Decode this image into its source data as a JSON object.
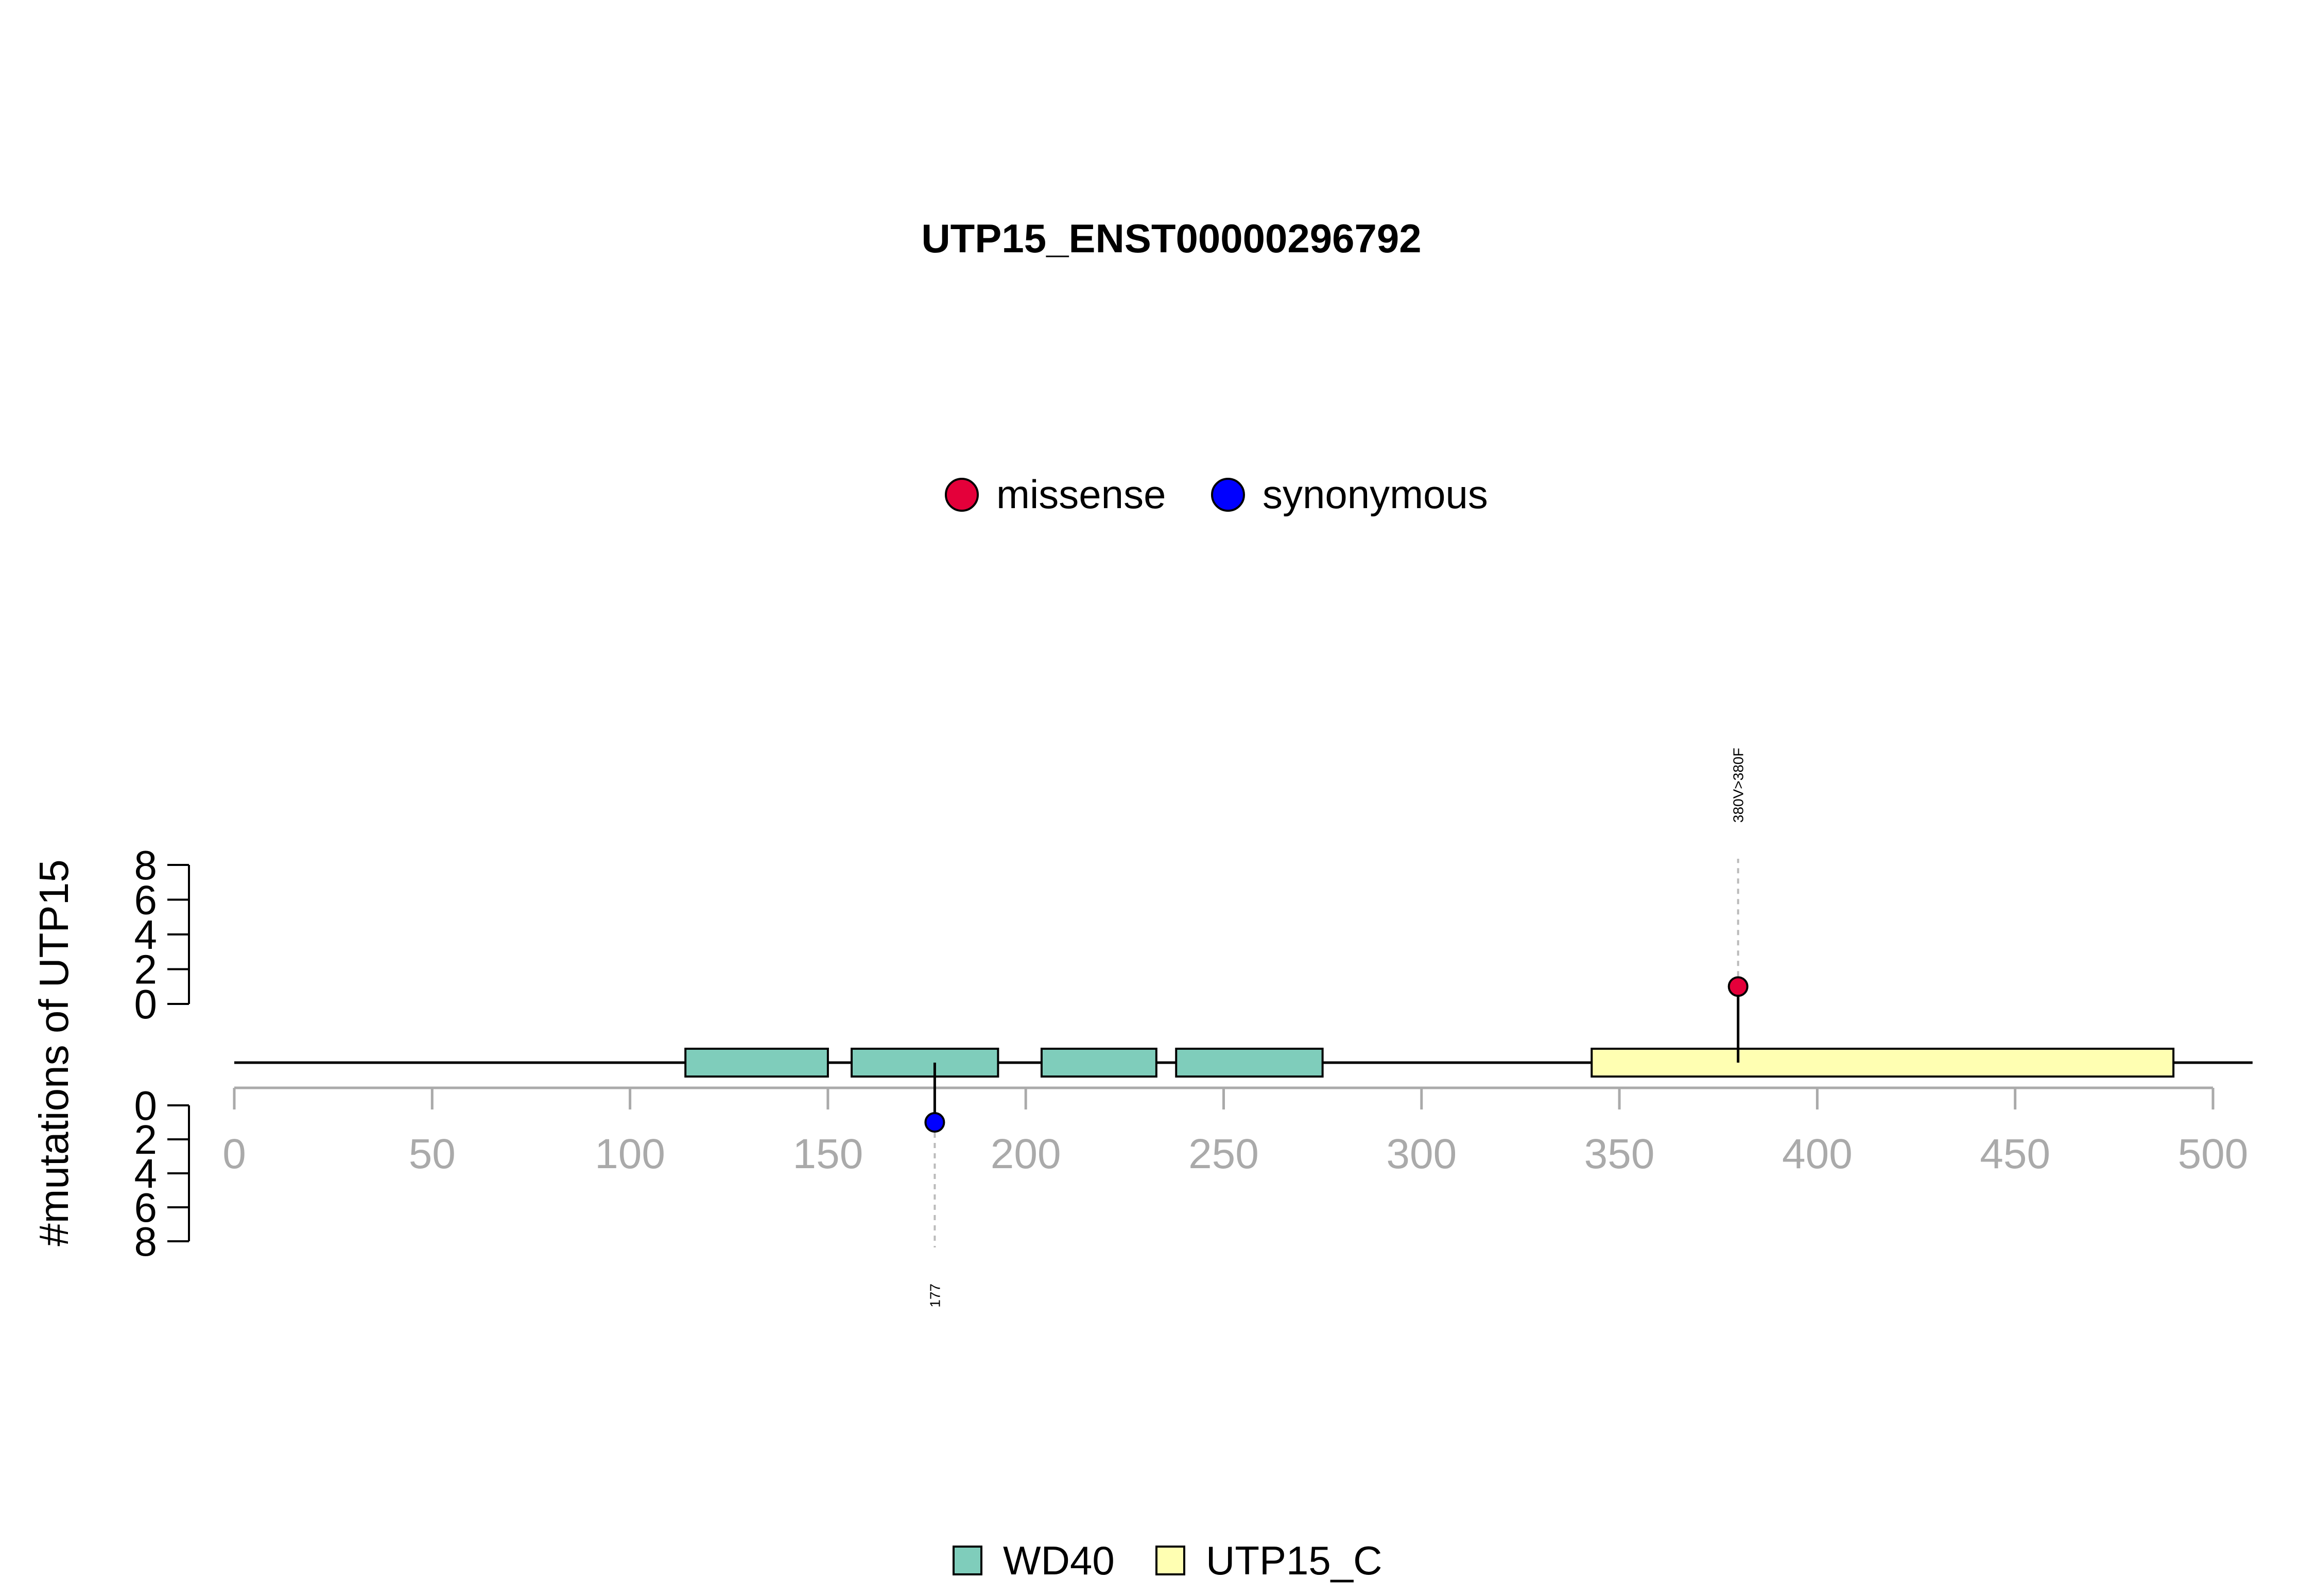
{
  "chart_data": {
    "type": "lollipop",
    "title": "UTP15_ENST00000296792",
    "ylabel": "#mutations of UTP15",
    "xlim": [
      0,
      500
    ],
    "x_ticks": [
      0,
      50,
      100,
      150,
      200,
      250,
      300,
      350,
      400,
      450,
      500
    ],
    "y_ticks": [
      0,
      2,
      4,
      6,
      8
    ],
    "protein_length": 510,
    "mutation_legend": [
      {
        "name": "missense",
        "color": "#e4003a"
      },
      {
        "name": "synonymous",
        "color": "#0000ff"
      }
    ],
    "domain_legend": [
      {
        "name": "WD40",
        "color": "#7fcdbb"
      },
      {
        "name": "UTP15_C",
        "color": "#ffffb2"
      }
    ],
    "domains": [
      {
        "name": "WD40",
        "start": 114,
        "end": 150
      },
      {
        "name": "WD40",
        "start": 156,
        "end": 193
      },
      {
        "name": "WD40",
        "start": 204,
        "end": 233
      },
      {
        "name": "WD40",
        "start": 238,
        "end": 275
      },
      {
        "name": "UTP15_C",
        "start": 343,
        "end": 490
      }
    ],
    "mutations": [
      {
        "position": 380,
        "count": 1,
        "type": "missense",
        "label": "380V>380F",
        "direction": "up"
      },
      {
        "position": 177,
        "count": 1,
        "type": "synonymous",
        "label": "177",
        "direction": "down"
      }
    ]
  }
}
